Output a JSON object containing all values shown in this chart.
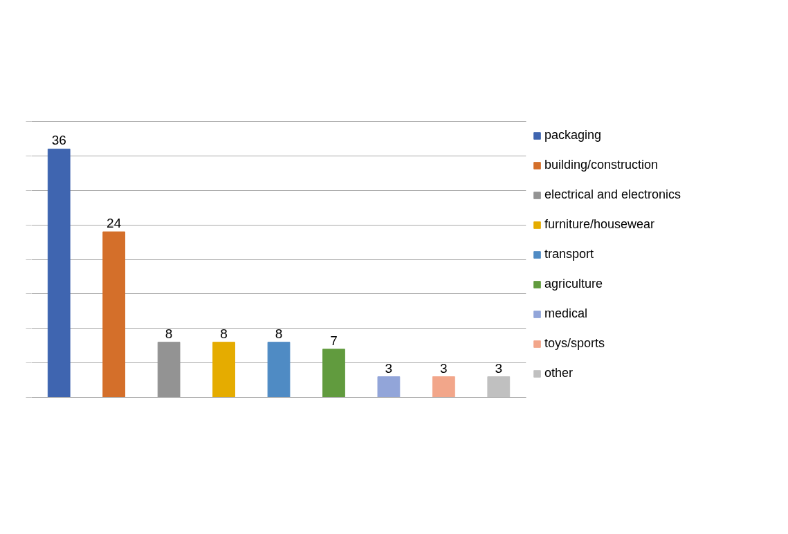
{
  "chart_data": {
    "type": "bar",
    "categories": [
      null,
      null,
      null,
      null,
      null,
      null,
      null,
      null,
      null
    ],
    "series": [
      {
        "name": "packaging",
        "color": "#3f65b0",
        "values": [
          36,
          null,
          null,
          null,
          null,
          null,
          null,
          null,
          null
        ]
      },
      {
        "name": "building/construction",
        "color": "#d46f2a",
        "values": [
          null,
          24,
          null,
          null,
          null,
          null,
          null,
          null,
          null
        ]
      },
      {
        "name": "electrical and electronics",
        "color": "#939393",
        "values": [
          null,
          null,
          8,
          null,
          null,
          null,
          null,
          null,
          null
        ]
      },
      {
        "name": "furniture/housewear",
        "color": "#e5ac00",
        "values": [
          null,
          null,
          null,
          8,
          null,
          null,
          null,
          null,
          null
        ]
      },
      {
        "name": "transport",
        "color": "#4f8bc4",
        "values": [
          null,
          null,
          null,
          null,
          8,
          null,
          null,
          null,
          null
        ]
      },
      {
        "name": "agriculture",
        "color": "#619b3e",
        "values": [
          null,
          null,
          null,
          null,
          null,
          7,
          null,
          null,
          null
        ]
      },
      {
        "name": "medical",
        "color": "#92a5d9",
        "values": [
          null,
          null,
          null,
          null,
          null,
          null,
          3,
          null,
          null
        ]
      },
      {
        "name": "toys/sports",
        "color": "#f2a68a",
        "values": [
          null,
          null,
          null,
          null,
          null,
          null,
          null,
          3,
          null
        ]
      },
      {
        "name": "other",
        "color": "#c0c0c0",
        "values": [
          null,
          null,
          null,
          null,
          null,
          null,
          null,
          null,
          3
        ]
      }
    ],
    "ylim": [
      0,
      40
    ],
    "yticks": [
      {
        "value": 0,
        "label": null
      },
      {
        "value": 5,
        "label": null
      },
      {
        "value": 10,
        "label": null
      },
      {
        "value": 15,
        "label": null
      },
      {
        "value": 20,
        "label": null
      },
      {
        "value": 25,
        "label": null
      },
      {
        "value": 30,
        "label": null
      },
      {
        "value": 35,
        "label": null
      },
      {
        "value": 40,
        "label": null
      }
    ],
    "grid": "y",
    "legend": "right",
    "data_labels": true,
    "stacked": true
  }
}
